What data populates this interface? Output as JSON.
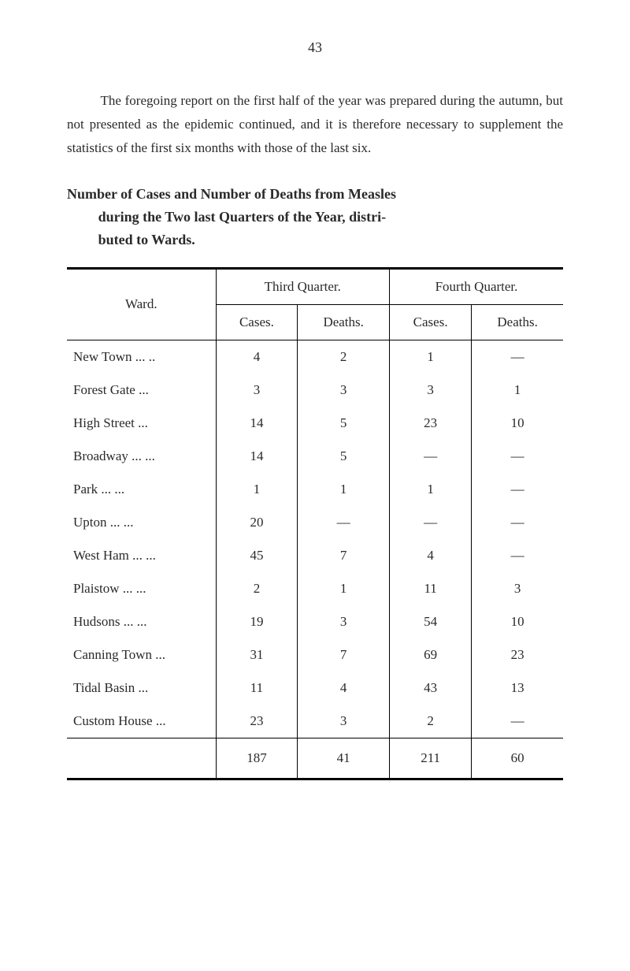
{
  "page_number": "43",
  "intro_text": "The foregoing report on the first half of the year was prepared during the autumn, but not presented as the epidemic continued, and it is therefore necessary to supplement the statistics of the first six months with those of the last six.",
  "heading": {
    "line1": "Number of Cases and Number of Deaths from Measles",
    "line2": "during the Two last Quarters of the Year, distri-",
    "line3": "buted to Wards."
  },
  "table": {
    "ward_label": "Ward.",
    "third_quarter_label": "Third Quarter.",
    "fourth_quarter_label": "Fourth Quarter.",
    "cases_label": "Cases.",
    "deaths_label": "Deaths.",
    "rows": [
      {
        "ward": "New Town ...     ..",
        "c3": "4",
        "d3": "2",
        "c4": "1",
        "d4": "—"
      },
      {
        "ward": "Forest Gate       ...",
        "c3": "3",
        "d3": "3",
        "c4": "3",
        "d4": "1"
      },
      {
        "ward": "High Street        ...",
        "c3": "14",
        "d3": "5",
        "c4": "23",
        "d4": "10"
      },
      {
        "ward": "Broadway ...      ...",
        "c3": "14",
        "d3": "5",
        "c4": "—",
        "d4": "—"
      },
      {
        "ward": "Park         ...      ...",
        "c3": "1",
        "d3": "1",
        "c4": "1",
        "d4": "—"
      },
      {
        "ward": "Upton        ...      ...",
        "c3": "20",
        "d3": "—",
        "c4": "—",
        "d4": "—"
      },
      {
        "ward": "West Ham ...      ...",
        "c3": "45",
        "d3": "7",
        "c4": "4",
        "d4": "—"
      },
      {
        "ward": "Plaistow     ...      ...",
        "c3": "2",
        "d3": "1",
        "c4": "11",
        "d4": "3"
      },
      {
        "ward": "Hudsons     ...      ...",
        "c3": "19",
        "d3": "3",
        "c4": "54",
        "d4": "10"
      },
      {
        "ward": "Canning Town     ...",
        "c3": "31",
        "d3": "7",
        "c4": "69",
        "d4": "23"
      },
      {
        "ward": "Tidal Basin          ...",
        "c3": "11",
        "d3": "4",
        "c4": "43",
        "d4": "13"
      },
      {
        "ward": "Custom House     ...",
        "c3": "23",
        "d3": "3",
        "c4": "2",
        "d4": "—"
      }
    ],
    "totals": {
      "ward": "",
      "c3": "187",
      "d3": "41",
      "c4": "211",
      "d4": "60"
    }
  },
  "colors": {
    "text": "#2a2a2a",
    "background": "#ffffff",
    "rule": "#000000"
  },
  "typography": {
    "body_fontsize": 17,
    "heading_fontsize": 18,
    "font_family": "Georgia, Times New Roman, serif"
  }
}
